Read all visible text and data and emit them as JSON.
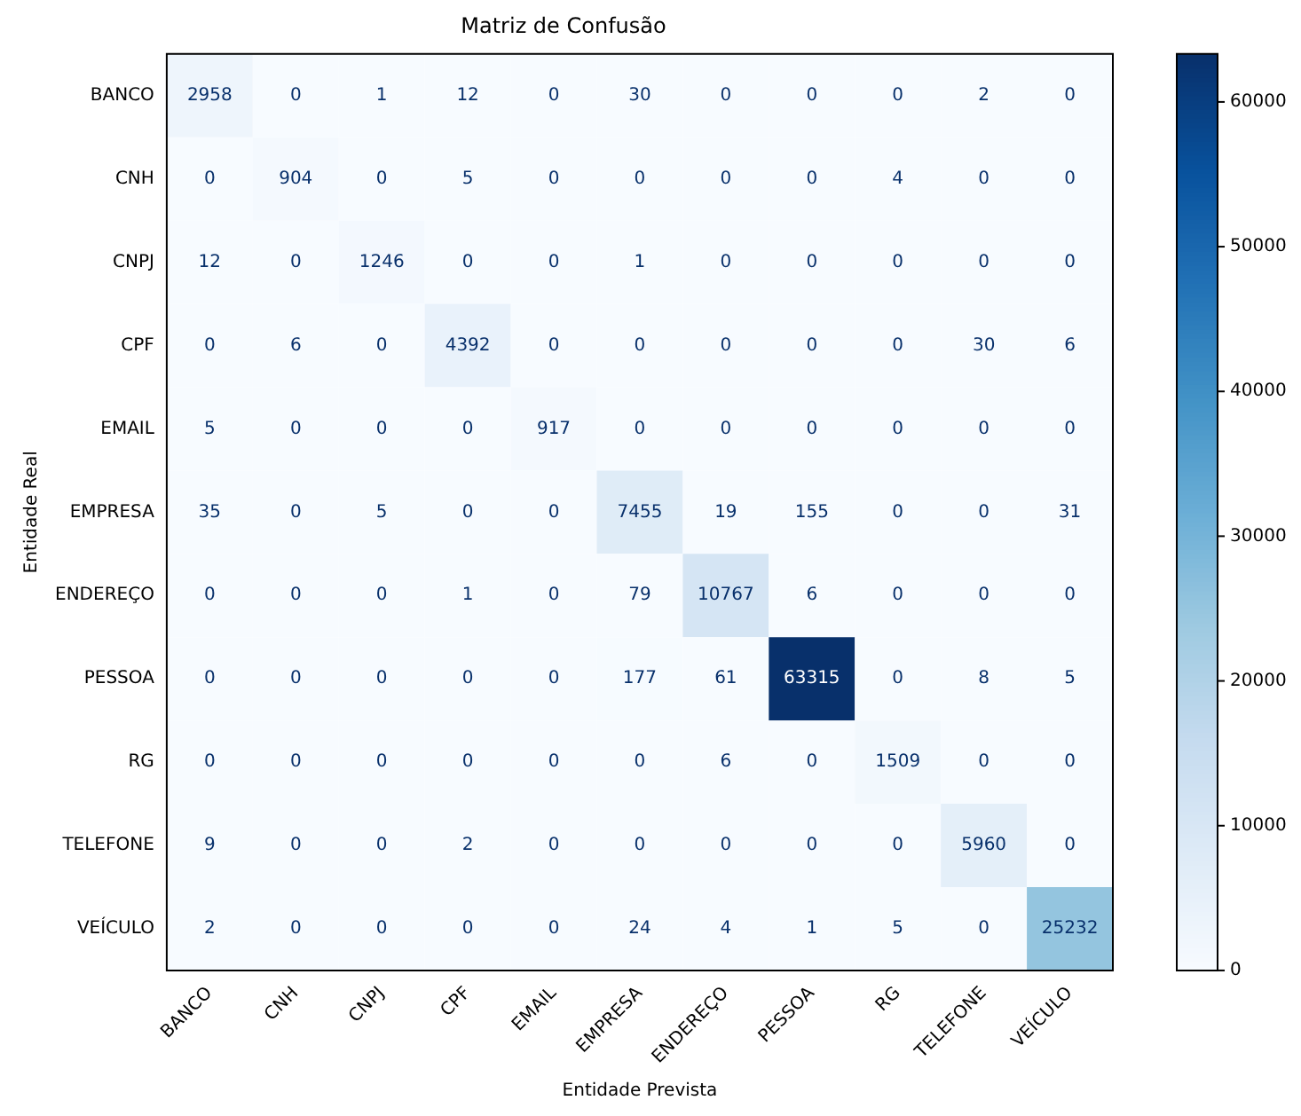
{
  "chart_data": {
    "type": "heatmap",
    "title": "Matriz de Confusão",
    "xlabel": "Entidade Prevista",
    "ylabel": "Entidade Real",
    "categories": [
      "BANCO",
      "CNH",
      "CNPJ",
      "CPF",
      "EMAIL",
      "EMPRESA",
      "ENDEREÇO",
      "PESSOA",
      "RG",
      "TELEFONE",
      "VEÍCULO"
    ],
    "y_categories": [
      "BANCO",
      "CNH",
      "CNPJ",
      "CPF",
      "EMAIL",
      "EMPRESA",
      "ENDEREÇO",
      "PESSOA",
      "RG",
      "TELEFONE",
      "VEÍCULO"
    ],
    "cells": [
      [
        2958,
        0,
        1,
        12,
        0,
        30,
        0,
        0,
        0,
        2,
        0
      ],
      [
        0,
        904,
        0,
        5,
        0,
        0,
        0,
        0,
        4,
        0,
        0
      ],
      [
        12,
        0,
        1246,
        0,
        0,
        1,
        0,
        0,
        0,
        0,
        0
      ],
      [
        0,
        6,
        0,
        4392,
        0,
        0,
        0,
        0,
        0,
        30,
        6
      ],
      [
        5,
        0,
        0,
        0,
        917,
        0,
        0,
        0,
        0,
        0,
        0
      ],
      [
        35,
        0,
        5,
        0,
        0,
        7455,
        19,
        155,
        0,
        0,
        31
      ],
      [
        0,
        0,
        0,
        1,
        0,
        79,
        10767,
        6,
        0,
        0,
        0
      ],
      [
        0,
        0,
        0,
        0,
        0,
        177,
        61,
        63315,
        0,
        8,
        5
      ],
      [
        0,
        0,
        0,
        0,
        0,
        0,
        6,
        0,
        1509,
        0,
        0
      ],
      [
        9,
        0,
        0,
        2,
        0,
        0,
        0,
        0,
        0,
        5960,
        0
      ],
      [
        2,
        0,
        0,
        0,
        0,
        24,
        4,
        1,
        5,
        0,
        25232
      ]
    ],
    "data_labels": true,
    "clim": [
      0,
      63315
    ],
    "cticks": [
      0,
      10000,
      20000,
      30000,
      40000,
      50000,
      60000
    ]
  }
}
